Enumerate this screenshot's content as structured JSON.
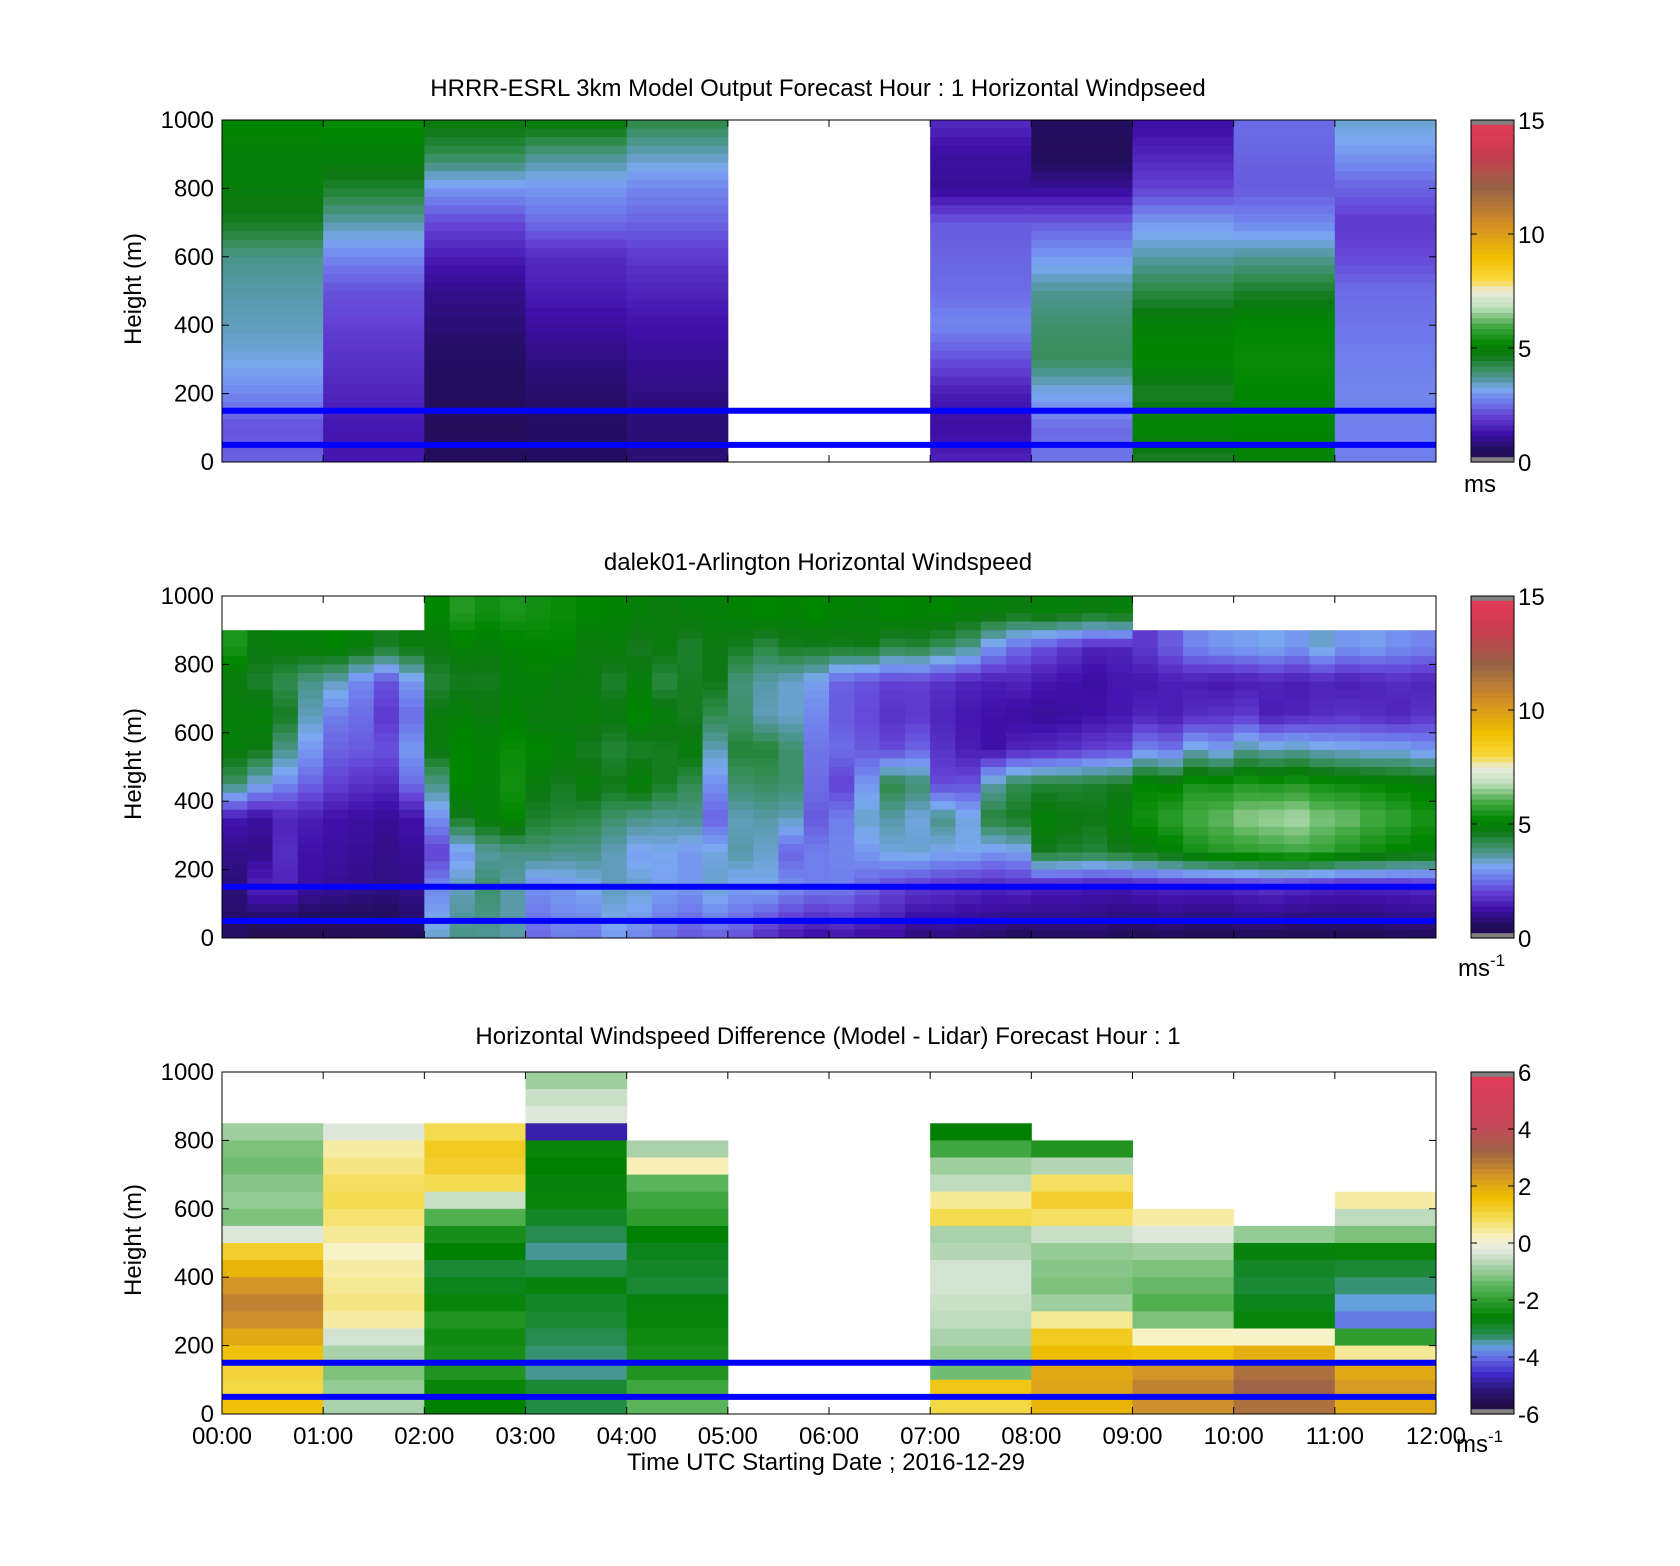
{
  "figure": {
    "xlabel": "Time UTC  Starting Date ; 2016-12-29",
    "x_tick_labels": [
      "00:00",
      "01:00",
      "02:00",
      "03:00",
      "04:00",
      "05:00",
      "06:00",
      "07:00",
      "08:00",
      "09:00",
      "10:00",
      "11:00",
      "12:00"
    ]
  },
  "chart_data": [
    {
      "type": "heatmap",
      "title": "HRRR-ESRL 3km Model Output   Forecast Hour : 1 Horizontal Windpseed",
      "ylabel": "Height (m)",
      "xlim": [
        0,
        12
      ],
      "ylim": [
        0,
        1000
      ],
      "y_tick_labels": [
        "0",
        "200",
        "400",
        "600",
        "800",
        "1000"
      ],
      "y_ticks": [
        0,
        200,
        400,
        600,
        800,
        1000
      ],
      "colorbar": {
        "ticks": [
          0,
          5,
          10,
          15
        ],
        "tick_labels": [
          "0",
          "5",
          "10",
          "15"
        ],
        "range": [
          0,
          15
        ],
        "unit_label": "ms",
        "unit_superscript": "",
        "colormap": "wind"
      },
      "hlines": [
        {
          "y": 150,
          "color": "#0000ff"
        },
        {
          "y": 50,
          "color": "#0000ff"
        }
      ],
      "rows_from_top": [
        1000,
        900,
        800,
        700,
        600,
        500,
        400,
        300,
        200,
        100,
        0
      ],
      "hours": [
        {
          "hour": 0,
          "profile": [
            5.2,
            5.0,
            4.9,
            4.6,
            3.8,
            3.6,
            3.5,
            3.3,
            2.8,
            2.2,
            2.4
          ]
        },
        {
          "hour": 1,
          "profile": [
            5.3,
            5.0,
            4.5,
            3.6,
            2.8,
            2.2,
            2.0,
            1.8,
            1.6,
            1.4,
            1.4
          ]
        },
        {
          "hour": 2,
          "profile": [
            4.9,
            4.2,
            3.0,
            2.1,
            1.5,
            1.0,
            0.8,
            0.6,
            0.5,
            0.4,
            0.5
          ]
        },
        {
          "hour": 3,
          "profile": [
            5.0,
            3.8,
            3.0,
            2.5,
            1.7,
            1.5,
            1.2,
            0.9,
            0.7,
            0.6,
            0.6
          ]
        },
        {
          "hour": 4,
          "profile": [
            4.3,
            3.5,
            2.8,
            2.4,
            1.9,
            1.6,
            1.3,
            1.1,
            0.9,
            0.8,
            0.8
          ]
        },
        {
          "hour": 7,
          "profile": [
            1.7,
            1.2,
            1.1,
            2.3,
            2.4,
            2.5,
            2.8,
            2.2,
            1.5,
            1.2,
            1.6
          ]
        },
        {
          "hour": 8,
          "profile": [
            0.6,
            0.4,
            1.1,
            2.3,
            3.0,
            3.7,
            4.0,
            4.1,
            3.2,
            2.5,
            2.6
          ]
        },
        {
          "hour": 9,
          "profile": [
            1.2,
            1.6,
            2.0,
            3.0,
            3.6,
            4.3,
            5.0,
            5.2,
            4.5,
            5.2,
            4.5
          ]
        },
        {
          "hour": 10,
          "profile": [
            2.5,
            2.4,
            2.3,
            2.8,
            3.7,
            4.5,
            5.2,
            5.3,
            5.2,
            5.2,
            5.0
          ]
        },
        {
          "hour": 11,
          "profile": [
            3.4,
            3.0,
            2.4,
            1.9,
            2.1,
            2.5,
            2.6,
            2.7,
            2.8,
            2.7,
            2.7
          ]
        }
      ]
    },
    {
      "type": "heatmap",
      "title": "dalek01-Arlington  Horizontal Windspeed",
      "ylabel": "Height (m)",
      "xlim": [
        0,
        12
      ],
      "ylim": [
        0,
        1000
      ],
      "y_tick_labels": [
        "0",
        "200",
        "400",
        "600",
        "800",
        "1000"
      ],
      "y_ticks": [
        0,
        200,
        400,
        600,
        800,
        1000
      ],
      "colorbar": {
        "ticks": [
          0,
          5,
          10,
          15
        ],
        "tick_labels": [
          "0",
          "5",
          "10",
          "15"
        ],
        "range": [
          0,
          15
        ],
        "unit_label": "ms",
        "unit_superscript": "-1",
        "colormap": "wind"
      },
      "hlines": [
        {
          "y": 150,
          "color": "#0000ff"
        },
        {
          "y": 50,
          "color": "#0000ff"
        }
      ],
      "resolution_minutes": 15,
      "rows_from_top": [
        950,
        850,
        750,
        650,
        550,
        450,
        350,
        250,
        150,
        50
      ],
      "profiles": [
        [
          null,
          5.5,
          4.8,
          4.9,
          4.9,
          4.0,
          1.4,
          1.0,
          0.8,
          0.7
        ],
        [
          null,
          4.8,
          4.5,
          5.0,
          4.7,
          3.3,
          1.2,
          1.0,
          1.6,
          0.6
        ],
        [
          null,
          4.9,
          4.2,
          4.6,
          3.8,
          2.8,
          1.6,
          1.7,
          1.6,
          0.6
        ],
        [
          null,
          5.0,
          3.8,
          3.5,
          3.0,
          2.4,
          1.5,
          1.3,
          1.2,
          0.5
        ],
        [
          null,
          5.1,
          3.5,
          2.7,
          2.4,
          2.0,
          1.3,
          1.2,
          1.1,
          0.5
        ],
        [
          null,
          4.9,
          2.8,
          2.5,
          2.3,
          1.8,
          1.2,
          1.1,
          1.0,
          0.5
        ],
        [
          null,
          4.6,
          2.2,
          1.9,
          2.2,
          1.7,
          1.1,
          1.0,
          0.9,
          0.5
        ],
        [
          null,
          4.8,
          3.0,
          2.5,
          3.0,
          2.5,
          1.3,
          1.1,
          1.0,
          0.7
        ],
        [
          5.2,
          4.8,
          4.4,
          4.8,
          4.8,
          3.8,
          2.9,
          2.0,
          2.8,
          3.2
        ],
        [
          5.6,
          5.0,
          4.6,
          5.0,
          5.2,
          5.2,
          4.6,
          3.0,
          3.5,
          3.7
        ],
        [
          5.4,
          4.9,
          4.6,
          4.8,
          5.1,
          5.0,
          5.0,
          3.6,
          4.0,
          3.8
        ],
        [
          5.5,
          5.1,
          4.9,
          5.1,
          5.3,
          5.4,
          5.2,
          3.8,
          3.6,
          3.6
        ],
        [
          5.4,
          5.2,
          5.0,
          4.8,
          5.2,
          4.8,
          4.5,
          3.9,
          2.9,
          2.6
        ],
        [
          5.3,
          5.2,
          4.8,
          4.8,
          5.0,
          4.6,
          4.4,
          3.8,
          3.0,
          2.8
        ],
        [
          5.2,
          4.8,
          4.8,
          4.9,
          4.6,
          4.9,
          4.3,
          3.8,
          3.2,
          2.8
        ],
        [
          5.1,
          4.9,
          4.5,
          4.8,
          4.4,
          4.7,
          4.0,
          3.5,
          3.5,
          3.2
        ],
        [
          5.0,
          4.6,
          4.9,
          5.2,
          4.5,
          5.0,
          3.8,
          3.1,
          3.4,
          3.0
        ],
        [
          4.8,
          4.8,
          4.3,
          4.9,
          4.6,
          4.6,
          3.7,
          3.2,
          3.1,
          2.7
        ],
        [
          4.9,
          4.5,
          4.6,
          4.6,
          4.9,
          4.2,
          3.8,
          3.0,
          3.0,
          2.5
        ],
        [
          5.0,
          4.7,
          4.7,
          4.2,
          3.5,
          2.9,
          2.4,
          3.3,
          3.4,
          2.7
        ],
        [
          5.1,
          4.6,
          3.9,
          4.0,
          4.4,
          4.0,
          3.5,
          3.6,
          3.1,
          2.5
        ],
        [
          5.2,
          4.3,
          3.6,
          3.5,
          4.4,
          4.1,
          3.6,
          3.4,
          3.2,
          2.2
        ],
        [
          5.1,
          4.6,
          3.4,
          3.4,
          4.0,
          4.0,
          3.5,
          2.4,
          2.9,
          1.9
        ],
        [
          5.2,
          4.6,
          3.1,
          2.8,
          2.6,
          2.5,
          2.3,
          2.7,
          2.7,
          1.7
        ],
        [
          5.1,
          4.6,
          2.4,
          2.3,
          2.5,
          2.0,
          2.7,
          2.8,
          2.7,
          1.8
        ],
        [
          5.0,
          4.7,
          2.2,
          2.1,
          2.3,
          3.0,
          3.4,
          3.0,
          2.4,
          1.6
        ],
        [
          5.2,
          4.3,
          2.0,
          1.8,
          2.1,
          4.3,
          3.6,
          3.3,
          2.1,
          1.5
        ],
        [
          5.1,
          4.4,
          2.0,
          1.9,
          2.4,
          4.0,
          3.3,
          3.4,
          1.9,
          1.2
        ],
        [
          5.2,
          4.1,
          1.8,
          1.6,
          1.8,
          2.1,
          3.8,
          3.2,
          1.8,
          1.2
        ],
        [
          5.0,
          3.8,
          1.6,
          1.4,
          1.5,
          2.2,
          3.3,
          3.2,
          1.7,
          1.1
        ],
        [
          4.9,
          3.0,
          1.5,
          1.3,
          1.3,
          3.6,
          4.4,
          3.0,
          1.6,
          1.0
        ],
        [
          4.8,
          2.5,
          1.6,
          1.2,
          1.6,
          4.2,
          4.6,
          3.1,
          1.7,
          0.9
        ],
        [
          5.0,
          2.2,
          1.4,
          1.1,
          1.7,
          4.4,
          5.0,
          4.6,
          1.5,
          0.9
        ],
        [
          4.9,
          1.9,
          1.3,
          1.2,
          1.8,
          4.4,
          4.8,
          4.5,
          1.5,
          0.9
        ],
        [
          4.8,
          1.6,
          1.2,
          1.3,
          2.0,
          4.5,
          4.7,
          4.4,
          1.4,
          0.9
        ],
        [
          4.9,
          1.6,
          1.4,
          1.4,
          2.1,
          4.6,
          5.0,
          4.6,
          1.4,
          0.8
        ],
        [
          null,
          1.9,
          1.4,
          1.6,
          2.8,
          5.2,
          5.4,
          4.8,
          1.5,
          0.8
        ],
        [
          null,
          2.3,
          1.5,
          1.5,
          2.6,
          5.1,
          5.7,
          5.0,
          1.6,
          0.9
        ],
        [
          null,
          2.8,
          1.5,
          1.7,
          3.4,
          5.5,
          6.0,
          5.4,
          1.6,
          0.8
        ],
        [
          null,
          3.0,
          1.4,
          1.8,
          3.1,
          5.4,
          6.2,
          5.6,
          1.6,
          0.8
        ],
        [
          null,
          3.1,
          1.5,
          1.9,
          3.7,
          5.6,
          6.5,
          5.7,
          1.7,
          0.9
        ],
        [
          null,
          3.2,
          1.6,
          1.5,
          3.5,
          5.5,
          6.6,
          5.8,
          1.8,
          0.9
        ],
        [
          null,
          3.0,
          1.5,
          1.6,
          3.6,
          5.6,
          6.7,
          5.9,
          1.7,
          0.8
        ],
        [
          null,
          3.4,
          1.6,
          1.7,
          3.4,
          5.4,
          6.4,
          5.8,
          1.6,
          0.8
        ],
        [
          null,
          3.0,
          1.5,
          1.8,
          3.3,
          5.3,
          6.3,
          5.5,
          1.5,
          0.8
        ],
        [
          null,
          3.1,
          1.6,
          1.7,
          3.2,
          5.2,
          6.0,
          5.3,
          1.6,
          0.8
        ],
        [
          null,
          2.9,
          1.7,
          1.6,
          3.2,
          5.1,
          5.8,
          5.1,
          1.6,
          0.9
        ],
        [
          null,
          2.8,
          1.6,
          1.8,
          3.0,
          5.0,
          5.5,
          5.0,
          1.7,
          0.9
        ]
      ]
    },
    {
      "type": "heatmap",
      "title": "Horizontal Windspeed Difference (Model - Lidar) Forecast Hour : 1",
      "ylabel": "Height (m)",
      "xlim": [
        0,
        12
      ],
      "ylim": [
        0,
        1000
      ],
      "y_tick_labels": [
        "0",
        "200",
        "400",
        "600",
        "800",
        "1000"
      ],
      "y_ticks": [
        0,
        200,
        400,
        600,
        800,
        1000
      ],
      "colorbar": {
        "ticks": [
          -6,
          -4,
          -2,
          0,
          2,
          4,
          6
        ],
        "tick_labels": [
          "-6",
          "-4",
          "-2",
          "0",
          "2",
          "4",
          "6"
        ],
        "range": [
          -6,
          6
        ],
        "unit_label": "ms",
        "unit_superscript": "-1",
        "colormap": "diff"
      },
      "hlines": [
        {
          "y": 150,
          "color": "#0000ff"
        },
        {
          "y": 50,
          "color": "#0000ff"
        }
      ],
      "rows_from_top": [
        975,
        925,
        875,
        825,
        775,
        725,
        675,
        625,
        575,
        525,
        475,
        425,
        375,
        325,
        275,
        225,
        175,
        125,
        75,
        25
      ],
      "hours": [
        {
          "hour": 0,
          "profile": [
            null,
            null,
            null,
            -0.9,
            -1.2,
            -1.3,
            -1.1,
            -1.0,
            -1.2,
            -0.3,
            1.2,
            1.8,
            2.4,
            2.7,
            2.5,
            2.0,
            1.5,
            1.1,
            1.0,
            1.5
          ]
        },
        {
          "hour": 1,
          "profile": [
            null,
            null,
            null,
            -0.3,
            0.4,
            0.6,
            0.8,
            0.9,
            0.7,
            0.5,
            0.2,
            0.4,
            0.5,
            0.6,
            0.4,
            -0.4,
            -0.8,
            -1.2,
            -1.0,
            -0.8
          ]
        },
        {
          "hour": 2,
          "profile": [
            null,
            null,
            null,
            0.9,
            1.3,
            1.2,
            0.9,
            -0.5,
            -1.6,
            -2.3,
            -2.6,
            -3.0,
            -2.8,
            -2.5,
            -2.2,
            -2.4,
            -2.3,
            -2.2,
            -2.5,
            -2.6
          ]
        },
        {
          "hour": 3,
          "profile": [
            -0.9,
            -0.5,
            -0.3,
            -4.8,
            -2.5,
            -2.6,
            -2.7,
            -2.5,
            -2.9,
            -3.2,
            -3.4,
            -3.1,
            -2.7,
            -2.9,
            -3.0,
            -3.2,
            -3.3,
            -3.4,
            -3.0,
            -3.1
          ]
        },
        {
          "hour": 4,
          "profile": [
            null,
            null,
            null,
            null,
            -0.8,
            0.3,
            -1.5,
            -1.8,
            -2.0,
            -2.6,
            -2.8,
            -2.9,
            -3.0,
            -2.7,
            -2.5,
            -2.4,
            -2.3,
            -2.2,
            -1.8,
            -1.5
          ]
        },
        {
          "hour": 7,
          "profile": [
            null,
            null,
            null,
            -2.6,
            -1.8,
            -0.9,
            -0.6,
            0.5,
            0.9,
            -0.8,
            -0.7,
            -0.4,
            -0.4,
            -0.5,
            -0.6,
            -0.8,
            -1.0,
            -1.3,
            1.4,
            1.0
          ]
        },
        {
          "hour": 8,
          "profile": [
            null,
            null,
            null,
            null,
            -2.2,
            -0.7,
            0.8,
            1.2,
            0.8,
            -0.5,
            -1.0,
            -1.1,
            -1.2,
            -0.9,
            0.5,
            1.3,
            1.6,
            2.0,
            2.1,
            1.8
          ]
        },
        {
          "hour": 9,
          "profile": [
            null,
            null,
            null,
            null,
            null,
            null,
            null,
            null,
            0.4,
            -0.3,
            -0.9,
            -1.2,
            -1.4,
            -1.6,
            -1.2,
            0.2,
            1.5,
            2.4,
            2.7,
            2.5
          ]
        },
        {
          "hour": 10,
          "profile": [
            null,
            null,
            null,
            null,
            null,
            null,
            null,
            null,
            null,
            -1.0,
            -2.7,
            -2.9,
            -3.0,
            -2.8,
            -2.5,
            0.2,
            1.9,
            3.0,
            3.2,
            3.0
          ]
        },
        {
          "hour": 11,
          "profile": [
            null,
            null,
            null,
            null,
            null,
            null,
            null,
            0.4,
            -0.6,
            -1.2,
            -2.5,
            -3.0,
            -3.3,
            -3.6,
            -3.9,
            -2.0,
            0.5,
            2.0,
            2.3,
            2.0
          ]
        }
      ]
    }
  ]
}
